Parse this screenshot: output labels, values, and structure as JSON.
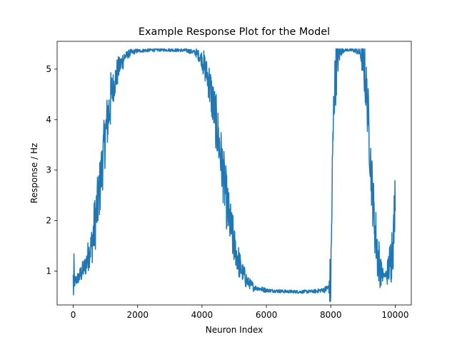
{
  "chart_data": {
    "type": "line",
    "title": "Example Response Plot for the Model",
    "xlabel": "Neuron Index",
    "ylabel": "Response / Hz",
    "xlim": [
      -500,
      10500
    ],
    "ylim": [
      0.33,
      5.55
    ],
    "x_ticks": [
      0,
      2000,
      4000,
      6000,
      8000,
      10000
    ],
    "x_tick_labels": [
      "0",
      "2000",
      "4000",
      "6000",
      "8000",
      "10000"
    ],
    "y_ticks": [
      1,
      2,
      3,
      4,
      5
    ],
    "y_tick_labels": [
      "1",
      "2",
      "3",
      "4",
      "5"
    ],
    "grid": false,
    "series": [
      {
        "color": "#1f77b4",
        "x": [
          0,
          200,
          400,
          600,
          800,
          1000,
          1200,
          1400,
          1600,
          1800,
          2000,
          2500,
          3000,
          3500,
          3800,
          4000,
          4200,
          4400,
          4600,
          4800,
          5000,
          5200,
          5400,
          5600,
          6000,
          6500,
          7000,
          7500,
          7800,
          7950,
          8000,
          8050,
          8100,
          8200,
          8300,
          8400,
          8600,
          8800,
          8950,
          9050,
          9150,
          9250,
          9350,
          9450,
          9550,
          9650,
          9750,
          9850,
          9950,
          10000
        ],
        "y": [
          0.75,
          0.9,
          1.15,
          1.6,
          2.5,
          3.7,
          4.55,
          5.0,
          5.25,
          5.33,
          5.36,
          5.38,
          5.38,
          5.37,
          5.33,
          5.2,
          4.8,
          4.1,
          3.2,
          2.2,
          1.5,
          1.05,
          0.8,
          0.68,
          0.62,
          0.6,
          0.59,
          0.6,
          0.63,
          0.68,
          0.75,
          3.0,
          4.5,
          5.2,
          5.35,
          5.38,
          5.38,
          5.36,
          5.3,
          5.0,
          4.2,
          3.0,
          2.0,
          1.35,
          1.0,
          0.9,
          0.95,
          1.2,
          1.7,
          2.6
        ]
      }
    ]
  }
}
